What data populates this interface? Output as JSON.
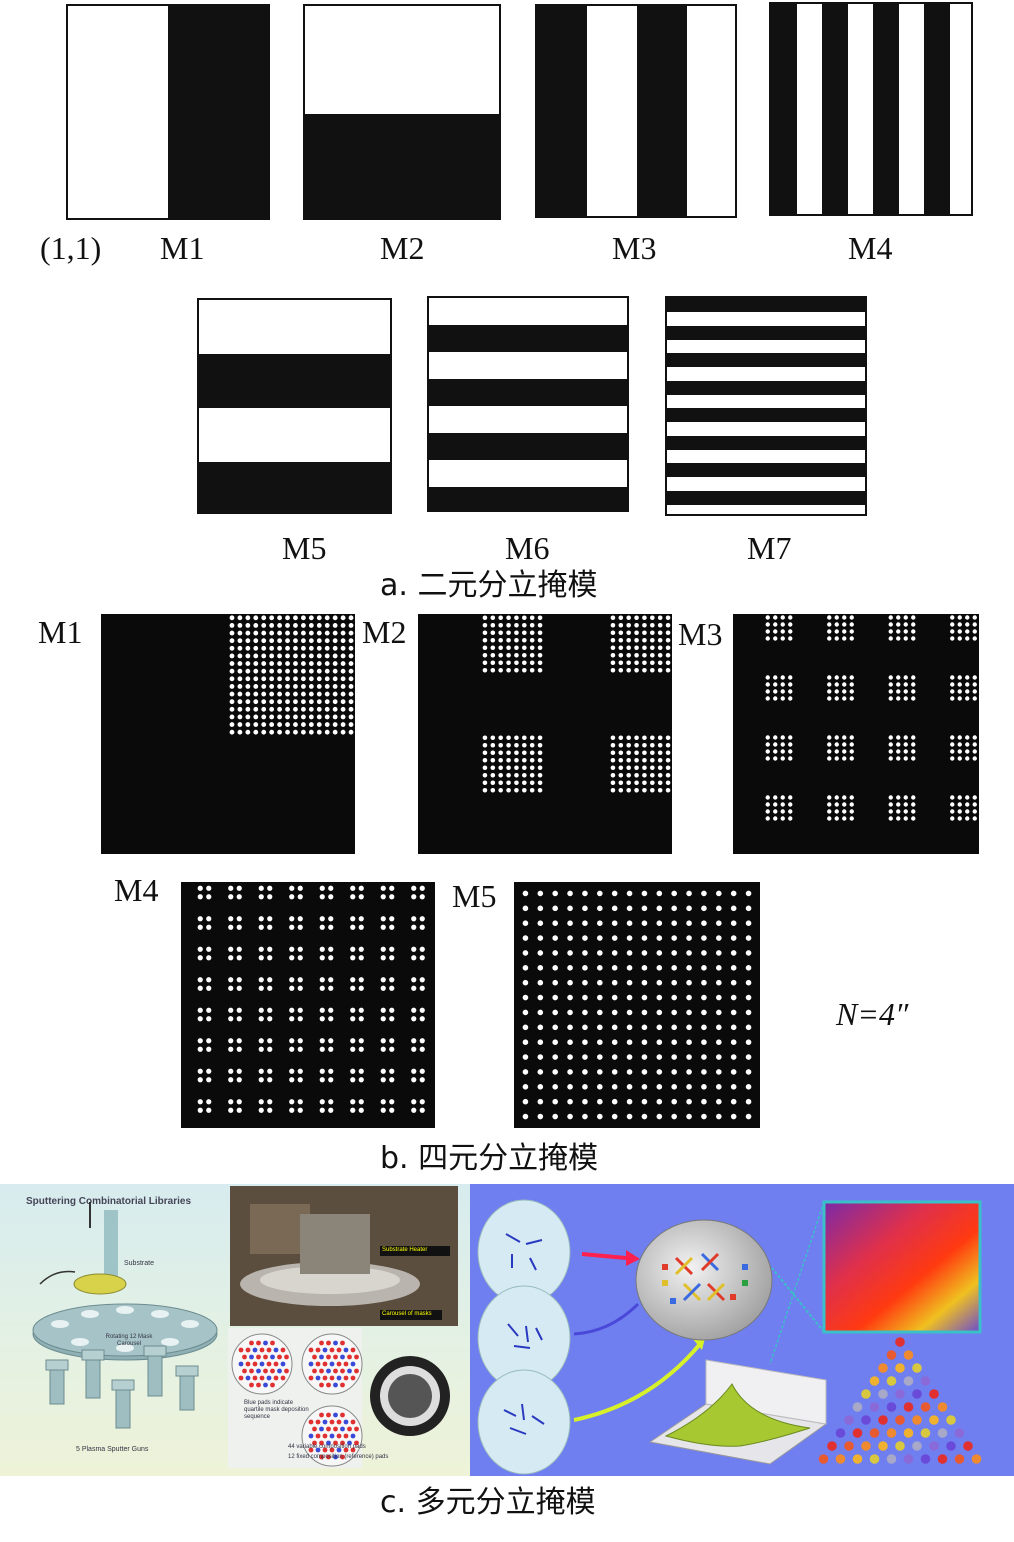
{
  "panel_a": {
    "origin_label": "(1,1)",
    "labels": [
      "M1",
      "M2",
      "M3",
      "M4",
      "M5",
      "M6",
      "M7"
    ],
    "caption": "a.  二元分立掩模"
  },
  "panel_b": {
    "labels": [
      "M1",
      "M2",
      "M3",
      "M4",
      "M5"
    ],
    "note": "N=4″",
    "caption": "b.  四元分立掩模"
  },
  "panel_c": {
    "left_title": "Sputtering Combinatorial Libraries",
    "substrate_label": "Substrate",
    "carousel_label": "Rotating 12 Mask Carousel",
    "guns_label": "5 Plasma Sputter Guns",
    "substrate_heater_label": "Substrate Heater",
    "carousel_masks_label": "Carousel of masks",
    "blue_pads_note": "Blue pads indicate quartile mask deposition sequence",
    "variable_pads": "44 variable composition pads",
    "fixed_pads": "12 fixed composition (reference) pads",
    "caption": "c.  多元分立掩模"
  }
}
